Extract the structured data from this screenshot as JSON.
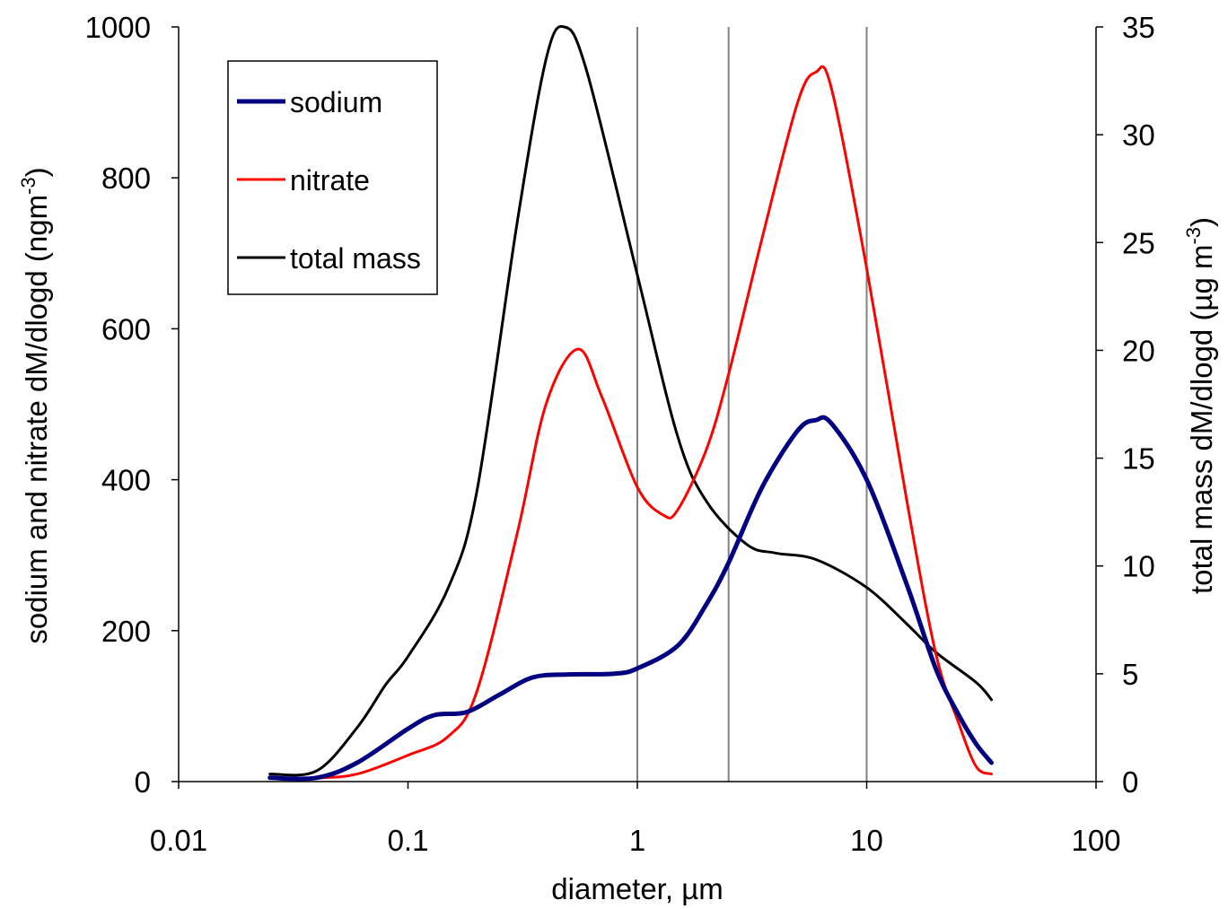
{
  "chart_data": {
    "type": "line",
    "x_scale": "log",
    "xlabel": "diameter, µm",
    "ylabel_left": "sodium and nitrate dM/dlogd  (ngm",
    "ylabel_left_sup": "-3",
    "ylabel_left_close": ")",
    "ylabel_right": "total mass dM/dlogd (µg m",
    "ylabel_right_sup": "-3",
    "ylabel_right_close": ")",
    "xlim": [
      0.01,
      100
    ],
    "ylim_left": [
      0,
      1000
    ],
    "ylim_right": [
      0,
      35
    ],
    "x_ticks": [
      "0.01",
      "0.1",
      "1",
      "10",
      "100"
    ],
    "x_tick_values": [
      0.01,
      0.1,
      1,
      10,
      100
    ],
    "y_left_ticks": [
      "0",
      "200",
      "400",
      "600",
      "800",
      "1000"
    ],
    "y_left_tick_values": [
      0,
      200,
      400,
      600,
      800,
      1000
    ],
    "y_right_ticks": [
      "0",
      "5",
      "10",
      "15",
      "20",
      "25",
      "30",
      "35"
    ],
    "y_right_tick_values": [
      0,
      5,
      10,
      15,
      20,
      25,
      30,
      35
    ],
    "vertical_lines": [
      1,
      2.5,
      10
    ],
    "legend_position": "top-left",
    "series": [
      {
        "name": "sodium",
        "axis": "left",
        "color": "#000080",
        "points": [
          [
            0.025,
            5
          ],
          [
            0.04,
            5
          ],
          [
            0.06,
            25
          ],
          [
            0.1,
            70
          ],
          [
            0.13,
            88
          ],
          [
            0.18,
            92
          ],
          [
            0.25,
            115
          ],
          [
            0.35,
            138
          ],
          [
            0.5,
            142
          ],
          [
            0.8,
            143
          ],
          [
            1.0,
            150
          ],
          [
            1.5,
            180
          ],
          [
            2.0,
            235
          ],
          [
            2.5,
            290
          ],
          [
            3.5,
            390
          ],
          [
            5.0,
            465
          ],
          [
            6.0,
            479
          ],
          [
            7.0,
            475
          ],
          [
            10.0,
            400
          ],
          [
            15.0,
            260
          ],
          [
            20.0,
            150
          ],
          [
            25.0,
            90
          ],
          [
            30.0,
            50
          ],
          [
            35.0,
            25
          ]
        ]
      },
      {
        "name": "nitrate",
        "axis": "left",
        "color": "#ff0000",
        "points": [
          [
            0.025,
            5
          ],
          [
            0.04,
            5
          ],
          [
            0.06,
            10
          ],
          [
            0.1,
            35
          ],
          [
            0.15,
            60
          ],
          [
            0.2,
            120
          ],
          [
            0.3,
            330
          ],
          [
            0.4,
            500
          ],
          [
            0.55,
            573
          ],
          [
            0.7,
            510
          ],
          [
            1.0,
            390
          ],
          [
            1.3,
            353
          ],
          [
            1.5,
            360
          ],
          [
            2.0,
            440
          ],
          [
            2.5,
            540
          ],
          [
            3.5,
            720
          ],
          [
            5.0,
            900
          ],
          [
            6.0,
            940
          ],
          [
            7.0,
            920
          ],
          [
            10.0,
            680
          ],
          [
            15.0,
            370
          ],
          [
            20.0,
            170
          ],
          [
            25.0,
            80
          ],
          [
            30.0,
            20
          ],
          [
            35.0,
            10
          ]
        ]
      },
      {
        "name": "total mass",
        "axis": "right",
        "color": "#000000",
        "points": [
          [
            0.025,
            0.35
          ],
          [
            0.04,
            0.5
          ],
          [
            0.06,
            2.5
          ],
          [
            0.08,
            4.5
          ],
          [
            0.1,
            5.8
          ],
          [
            0.15,
            9.0
          ],
          [
            0.2,
            13.5
          ],
          [
            0.3,
            26.0
          ],
          [
            0.4,
            33.5
          ],
          [
            0.48,
            35.0
          ],
          [
            0.6,
            33.0
          ],
          [
            1.0,
            23.5
          ],
          [
            1.5,
            16.0
          ],
          [
            2.0,
            13.0
          ],
          [
            3.0,
            11.0
          ],
          [
            4.0,
            10.6
          ],
          [
            6.0,
            10.3
          ],
          [
            10.0,
            9.0
          ],
          [
            15.0,
            7.3
          ],
          [
            20.0,
            6.0
          ],
          [
            30.0,
            4.6
          ],
          [
            35.0,
            3.8
          ]
        ]
      }
    ]
  }
}
